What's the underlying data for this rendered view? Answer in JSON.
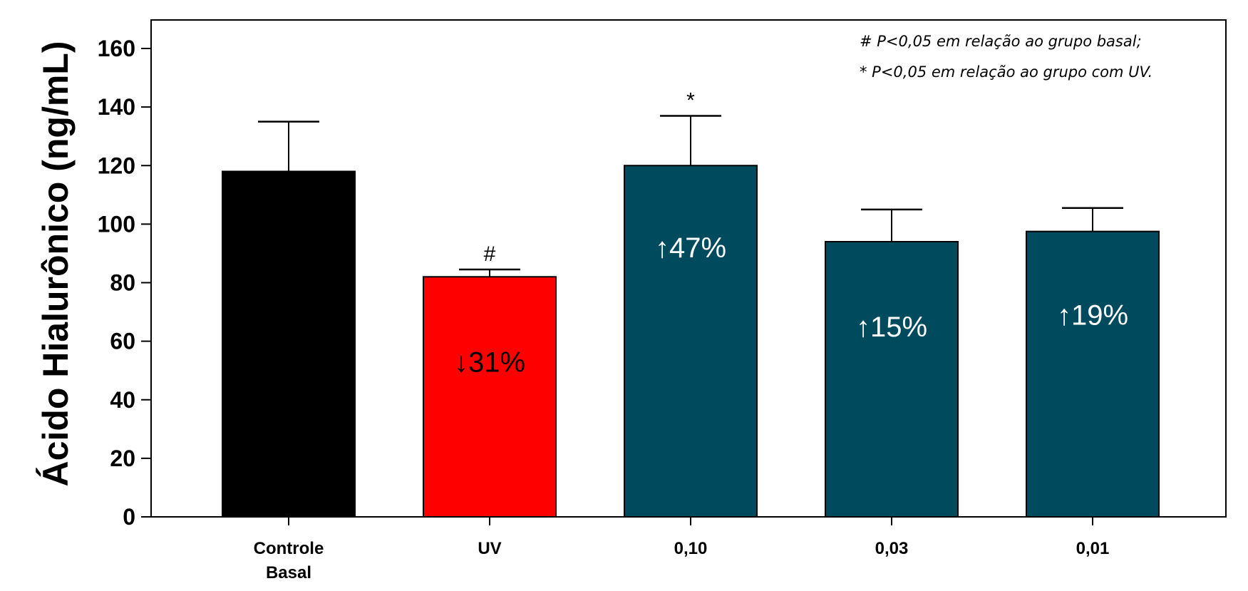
{
  "chart_data": {
    "type": "bar",
    "ylabel": "Ácido Hialurônico (ng/mL)",
    "xlabel": "",
    "ylim": [
      0,
      170
    ],
    "yticks": [
      "0",
      "20",
      "40",
      "60",
      "80",
      "100",
      "120",
      "140",
      "160"
    ],
    "ytick_values": [
      0,
      20,
      40,
      60,
      80,
      100,
      120,
      140,
      160
    ],
    "categories": [
      {
        "line1": "Controle",
        "line2": "Basal"
      },
      {
        "line1": "UV",
        "line2": ""
      },
      {
        "line1": "0,10",
        "line2": ""
      },
      {
        "line1": "0,03",
        "line2": ""
      },
      {
        "line1": "0,01",
        "line2": ""
      }
    ],
    "values": [
      118,
      82,
      120,
      94,
      97.5
    ],
    "errors": [
      17,
      2.5,
      17,
      11,
      8
    ],
    "bar_colors": [
      "#000000",
      "#ff0000",
      "#004a5e",
      "#004a5e",
      "#004a5e"
    ],
    "bar_labels": [
      "",
      "↓31%",
      "↑47%",
      "↑15%",
      "↑19%"
    ],
    "bar_label_values": [
      null,
      53,
      92,
      65,
      69
    ],
    "bar_label_colors": [
      "#ffffff",
      "#000000",
      "#ffffff",
      "#ffffff",
      "#ffffff"
    ],
    "significance": [
      "",
      "#",
      "*",
      "",
      ""
    ],
    "notes": [
      "# P<0,05 em relação ao grupo basal;",
      "* P<0,05 em  relação ao grupo com UV."
    ],
    "legend_placement": "top-right",
    "grid": false
  }
}
